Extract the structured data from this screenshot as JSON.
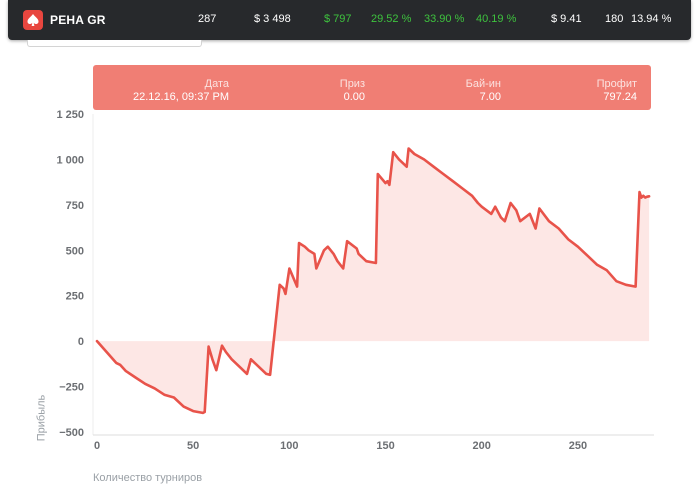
{
  "header": {
    "room_name": "PEHA GR",
    "logo": "spade-logo-icon",
    "stats": [
      "287",
      "$ 3 498",
      "$ 797",
      "29.52 %",
      "33.90 %",
      "40.19 %",
      "$ 9.41",
      "180",
      "13.94 %"
    ]
  },
  "tooltip": {
    "date_label": "Дата",
    "date_value": "22.12.16, 09:37 PM",
    "prize_label": "Приз",
    "prize_value": "0.00",
    "buyin_label": "Бай-ин",
    "buyin_value": "7.00",
    "profit_label": "Профит",
    "profit_value": "797.24"
  },
  "colors": {
    "line": "#e8534a",
    "area": "#fde7e5",
    "positive": "#3ec23e",
    "header_bg": "#27292c",
    "tooltip_bg": "#f07e74"
  },
  "chart_data": {
    "type": "line",
    "xlabel": "Количество турниров",
    "ylabel": "Прибыль",
    "xlim": [
      0,
      288
    ],
    "ylim": [
      -500,
      1250
    ],
    "xticks": [
      0,
      50,
      100,
      150,
      200,
      250
    ],
    "yticks": [
      -500,
      -250,
      0,
      250,
      500,
      750,
      1000,
      1250
    ],
    "ytick_labels": [
      "−500",
      "−250",
      "0",
      "250",
      "500",
      "750",
      "1 000",
      "1 250"
    ],
    "grid": false,
    "series": [
      {
        "x": [
          0,
          5,
          10,
          12,
          15,
          20,
          25,
          30,
          35,
          40,
          45,
          50,
          55,
          56,
          58,
          60,
          62,
          65,
          67,
          70,
          75,
          78,
          80,
          85,
          88,
          90,
          95,
          97,
          98,
          100,
          104,
          105,
          108,
          110,
          113,
          114,
          118,
          120,
          123,
          125,
          128,
          130,
          135,
          136,
          140,
          145,
          146,
          150,
          151,
          152,
          154,
          157,
          161,
          162,
          165,
          170,
          175,
          180,
          185,
          190,
          195,
          198,
          200,
          205,
          207,
          210,
          212,
          215,
          218,
          220,
          225,
          228,
          230,
          235,
          240,
          245,
          250,
          255,
          260,
          265,
          270,
          275,
          280,
          282,
          283,
          284,
          285,
          286,
          287
        ],
        "values": [
          0,
          -60,
          -120,
          -130,
          -165,
          -200,
          -235,
          -260,
          -295,
          -310,
          -360,
          -385,
          -395,
          -390,
          -30,
          -100,
          -160,
          -25,
          -60,
          -100,
          -150,
          -180,
          -100,
          -150,
          -180,
          -185,
          310,
          290,
          260,
          400,
          300,
          540,
          520,
          500,
          480,
          400,
          500,
          520,
          480,
          440,
          400,
          550,
          510,
          480,
          440,
          430,
          920,
          870,
          880,
          860,
          1040,
          1000,
          960,
          1060,
          1030,
          1000,
          960,
          920,
          880,
          840,
          800,
          760,
          740,
          700,
          740,
          680,
          660,
          760,
          720,
          660,
          700,
          620,
          730,
          660,
          620,
          560,
          520,
          470,
          420,
          390,
          330,
          310,
          300,
          820,
          790,
          800,
          790,
          795,
          797
        ]
      }
    ]
  }
}
